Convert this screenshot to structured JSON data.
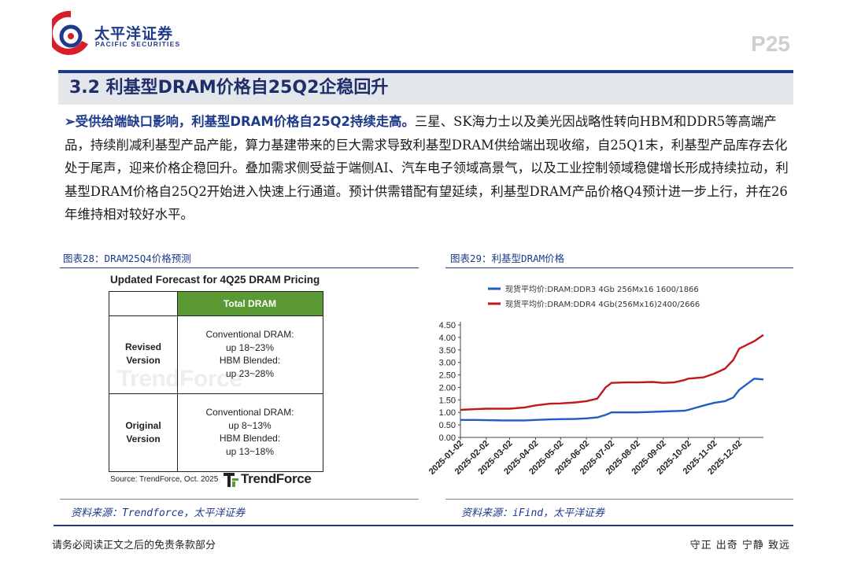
{
  "header": {
    "company_cn": "太平洋证券",
    "company_en": "PACIFIC SECURITIES",
    "page_number": "P25"
  },
  "section_title": "3.2 利基型DRAM价格自25Q2企稳回升",
  "paragraph": {
    "bullet": "➢",
    "lead": "受供给端缺口影响，利基型DRAM价格自25Q2持续走高。",
    "body": "三星、SK海力士以及美光因战略性转向HBM和DDR5等高端产品，持续削减利基型产品产能，算力基建带来的巨大需求导致利基型DRAM供给端出现收缩，自25Q1末，利基型产品库存去化处于尾声，迎来价格企稳回升。叠加需求侧受益于端侧AI、汽车电子领域高景气，以及工业控制领域稳健增长形成持续拉动，利基型DRAM价格自25Q2开始进入快速上行通道。预计供需错配有望延续，利基型DRAM产品价格Q4预计进一步上行，并在26年维持相对较好水平。"
  },
  "figure_left": {
    "caption": "图表28：DRAM25Q4价格预测",
    "image_title": "Updated Forecast for 4Q25 DRAM Pricing",
    "column_header": "Total DRAM",
    "rows": [
      {
        "label_lines": [
          "Revised",
          "Version"
        ],
        "cell_lines": [
          "Conventional DRAM:",
          "up 18~23%",
          "HBM Blended:",
          "up 23~28%"
        ]
      },
      {
        "label_lines": [
          "Original",
          "Version"
        ],
        "cell_lines": [
          "Conventional DRAM:",
          "up 8~13%",
          "HBM Blended:",
          "up 13~18%"
        ]
      }
    ],
    "watermark": "TrendForce",
    "image_source": "Source: TrendForce, Oct. 2025",
    "logo_text": "TrendForce",
    "source": "资料来源：Trendforce，太平洋证券"
  },
  "figure_right": {
    "caption": "图表29：利基型DRAM价格",
    "source": "资料来源：iFind，太平洋证券"
  },
  "footer": {
    "disclaimer": "请务必阅读正文之后的免责条款部分",
    "motto": "守正 出奇 宁静 致远"
  },
  "colors": {
    "brand_blue": "#1f3a8a",
    "header_green": "#5b9a33",
    "series_blue": "#1f5fbf",
    "series_red": "#c0181c",
    "logo_red": "#d81e2a"
  },
  "chart_data": {
    "type": "line",
    "title": "",
    "xlabel": "",
    "ylabel": "",
    "ylim": [
      0,
      4.5
    ],
    "yticks": [
      "0.00",
      "0.50",
      "1.00",
      "1.50",
      "2.00",
      "2.50",
      "3.00",
      "3.50",
      "4.00",
      "4.50"
    ],
    "xticks": [
      "2025-01-02",
      "2025-02-02",
      "2025-03-02",
      "2025-04-02",
      "2025-05-02",
      "2025-06-02",
      "2025-07-02",
      "2025-08-02",
      "2025-09-02",
      "2025-10-02",
      "2025-11-02",
      "2025-12-02"
    ],
    "grid": false,
    "legend_position": "top",
    "x_dates": [
      "2025-01-02",
      "2025-01-20",
      "2025-02-02",
      "2025-02-20",
      "2025-03-02",
      "2025-03-20",
      "2025-04-02",
      "2025-04-20",
      "2025-05-02",
      "2025-05-20",
      "2025-06-02",
      "2025-06-15",
      "2025-06-25",
      "2025-07-02",
      "2025-07-20",
      "2025-08-02",
      "2025-08-20",
      "2025-09-02",
      "2025-09-15",
      "2025-09-28",
      "2025-10-02",
      "2025-10-20",
      "2025-11-02",
      "2025-11-15",
      "2025-11-25",
      "2025-12-02",
      "2025-12-20",
      "2025-12-31"
    ],
    "series": [
      {
        "name": "现货平均价:DRAM:DDR3 4Gb 256Mx16 1600/1866",
        "values": [
          0.7,
          0.7,
          0.69,
          0.68,
          0.68,
          0.68,
          0.7,
          0.72,
          0.73,
          0.74,
          0.76,
          0.8,
          0.9,
          1.0,
          1.0,
          1.0,
          1.02,
          1.04,
          1.05,
          1.07,
          1.1,
          1.27,
          1.38,
          1.45,
          1.6,
          1.9,
          2.35,
          2.32
        ]
      },
      {
        "name": "现货平均价:DRAM:DDR4 4Gb(256Mx16)2400/2666",
        "values": [
          1.1,
          1.13,
          1.15,
          1.15,
          1.15,
          1.2,
          1.28,
          1.35,
          1.36,
          1.4,
          1.45,
          1.55,
          2.0,
          2.18,
          2.2,
          2.2,
          2.22,
          2.18,
          2.2,
          2.3,
          2.35,
          2.4,
          2.55,
          2.75,
          3.1,
          3.55,
          3.85,
          4.1
        ]
      }
    ]
  }
}
